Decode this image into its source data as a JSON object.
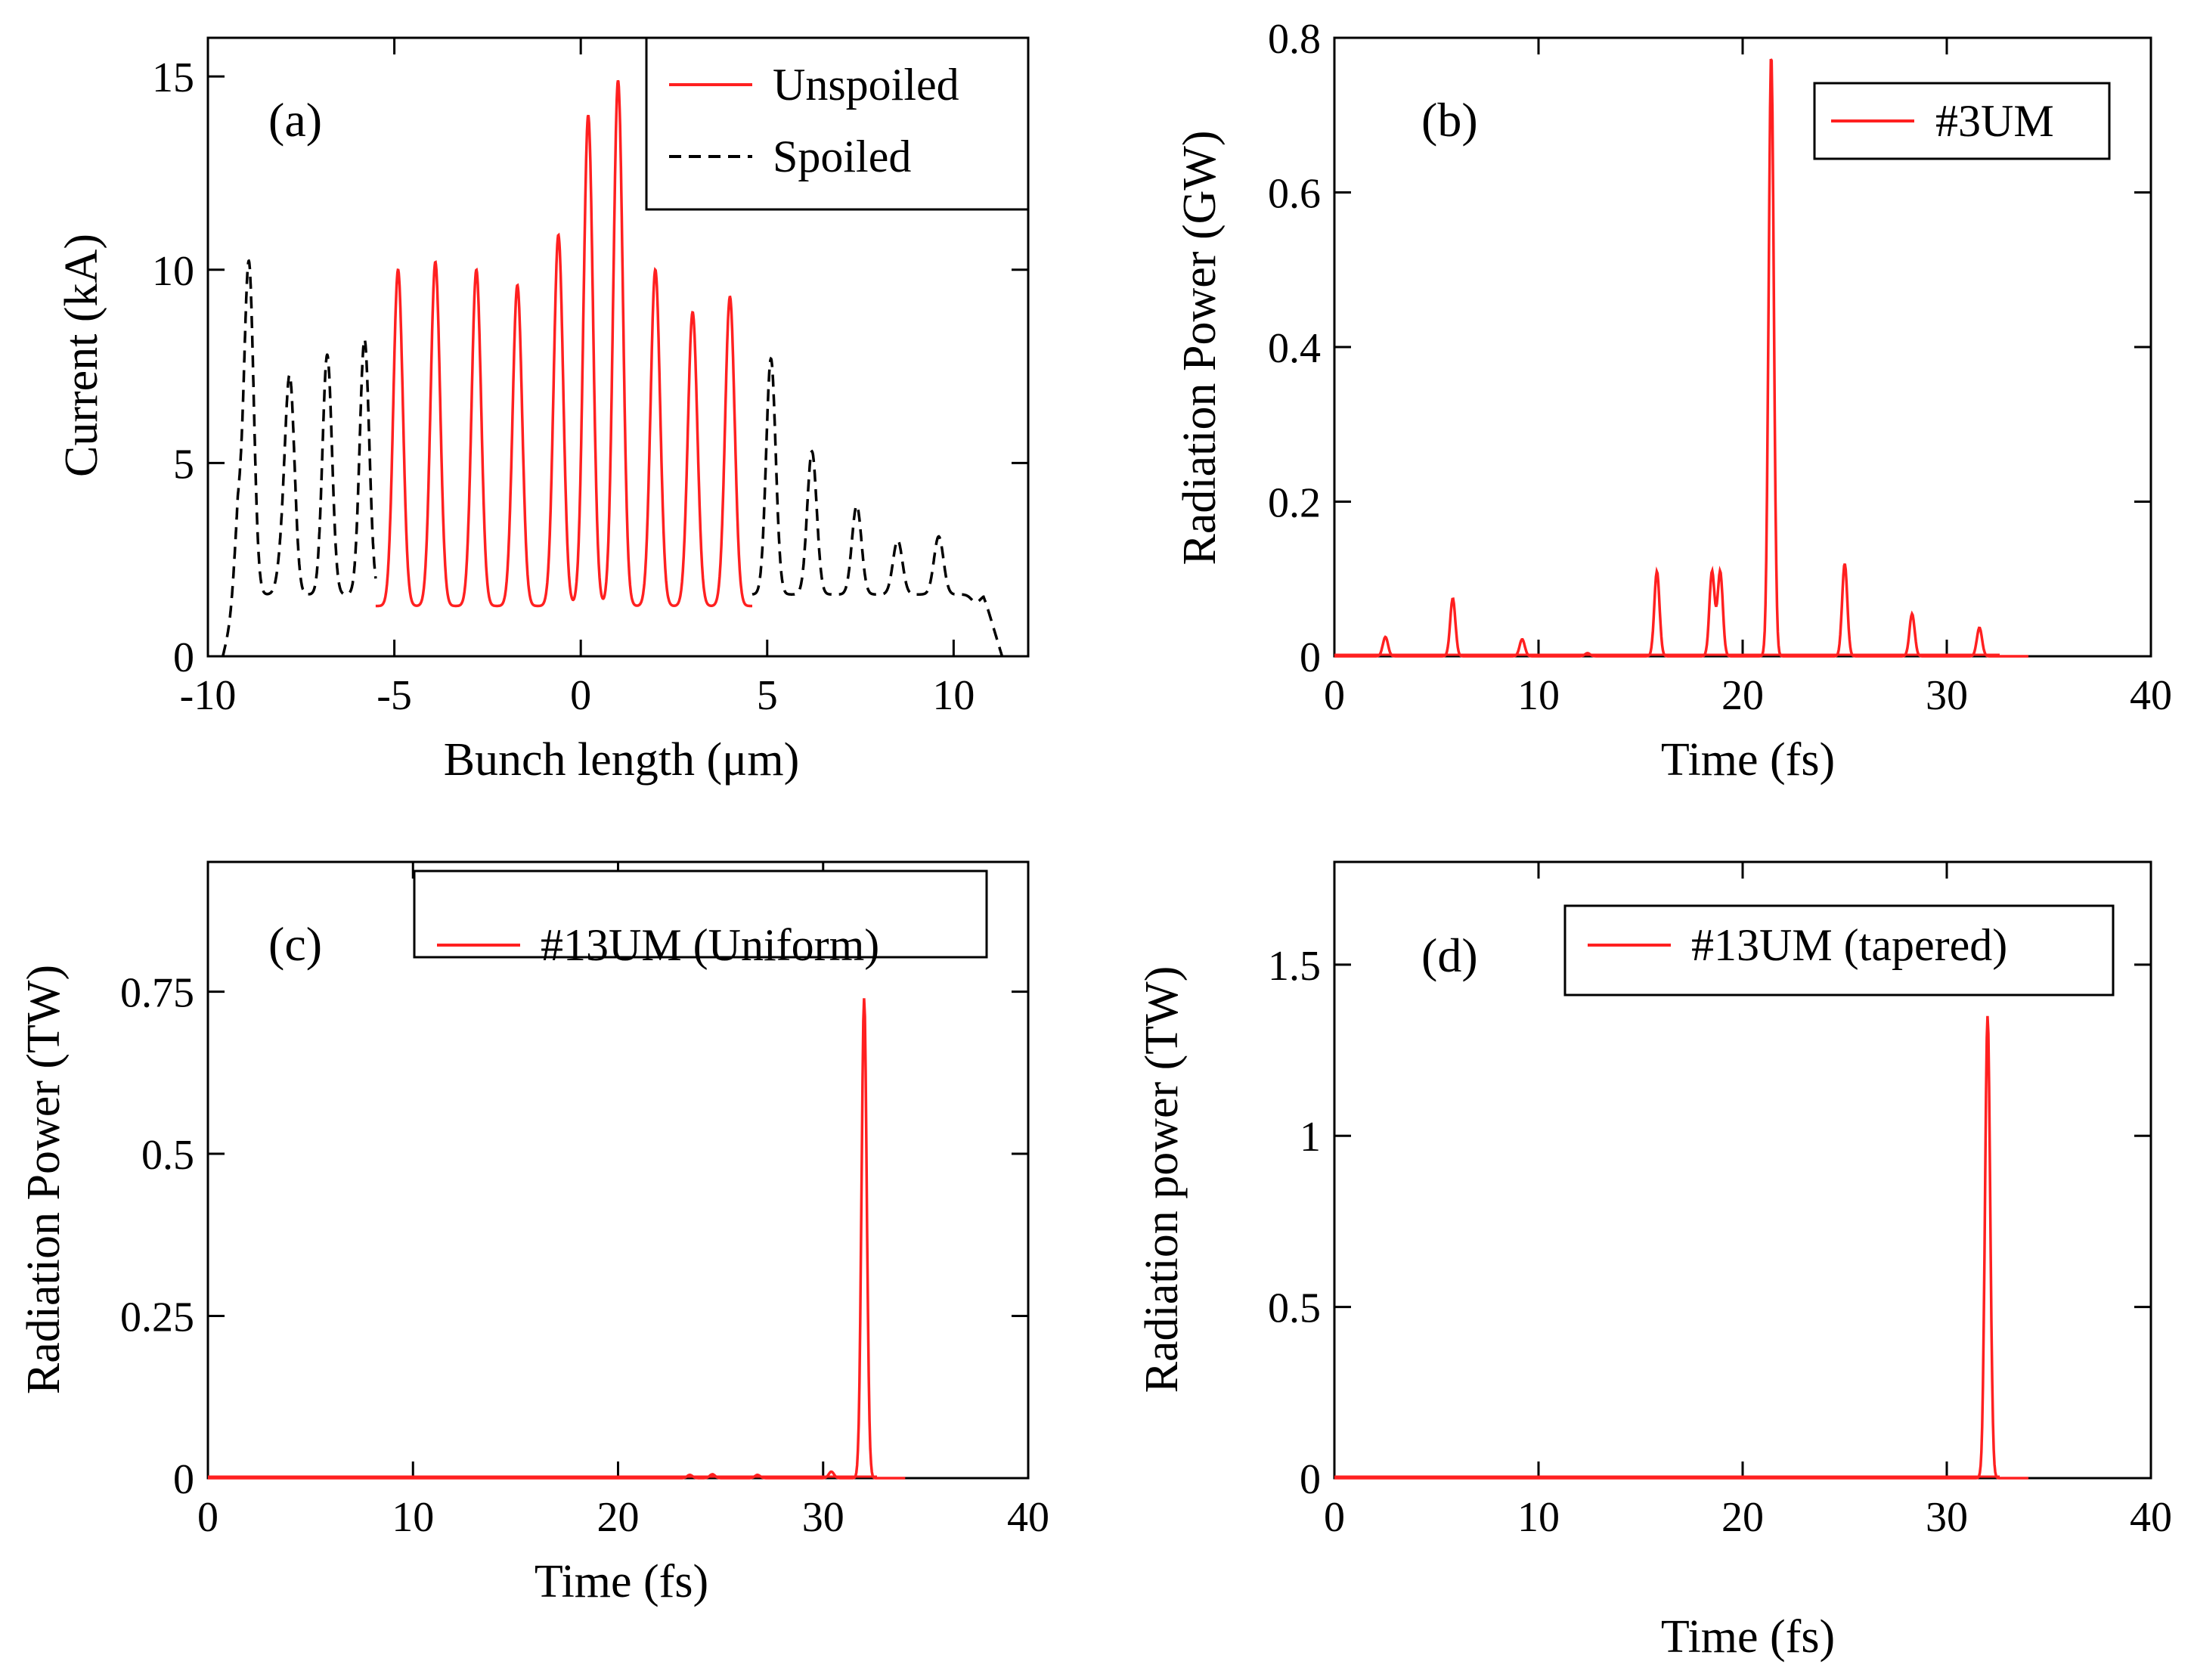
{
  "colors": {
    "unspoiled": "#ff2020",
    "spoiled": "#000000",
    "axes": "#000000"
  },
  "chart_data": [
    {
      "id": "a",
      "type": "line",
      "panel_label": "(a)",
      "xlabel": "Bunch length (μm)",
      "ylabel": "Current (kA)",
      "xlim": [
        -10,
        12
      ],
      "ylim": [
        0,
        16
      ],
      "xticks": [
        -10,
        -5,
        0,
        5,
        10
      ],
      "xtick_labels": [
        "-10",
        "-5",
        "0",
        "5",
        "10"
      ],
      "yticks": [
        0,
        5,
        10,
        15
      ],
      "ytick_labels": [
        "0",
        "5",
        "10",
        "15"
      ],
      "legend": {
        "location": "top-right",
        "entries": [
          "Unspoiled",
          "Spoiled"
        ]
      },
      "series": [
        {
          "name": "Unspoiled",
          "style": "solid",
          "color": "#ff2020",
          "baseline": 1.3,
          "range": [
            -5.5,
            4.6
          ],
          "peaks": [
            [
              -4.9,
              10.0
            ],
            [
              -3.9,
              10.2
            ],
            [
              -2.8,
              10.0
            ],
            [
              -1.7,
              9.6
            ],
            [
              -0.6,
              10.9
            ],
            [
              0.2,
              14.0
            ],
            [
              1.0,
              14.9
            ],
            [
              2.0,
              10.0
            ],
            [
              3.0,
              8.9
            ],
            [
              4.0,
              9.3
            ]
          ]
        },
        {
          "name": "Spoiled",
          "style": "dashed",
          "color": "#000000",
          "baseline": 1.6,
          "ranges": [
            [
              -9.6,
              -5.5
            ],
            [
              4.6,
              11.3
            ]
          ],
          "peaks": [
            [
              -9.2,
              3.6
            ],
            [
              -8.9,
              10.1
            ],
            [
              -8.0,
              2.5
            ],
            [
              -7.8,
              7.0
            ],
            [
              -6.8,
              7.8
            ],
            [
              -5.8,
              8.2
            ],
            [
              5.1,
              7.7
            ],
            [
              6.2,
              5.3
            ],
            [
              7.4,
              3.9
            ],
            [
              8.5,
              3.0
            ],
            [
              9.6,
              3.1
            ],
            [
              10.6,
              1.4
            ]
          ]
        }
      ]
    },
    {
      "id": "b",
      "type": "line",
      "panel_label": "(b)",
      "xlabel": "Time (fs)",
      "ylabel": "Radiation Power (GW)",
      "xlim": [
        0,
        40
      ],
      "ylim": [
        0,
        0.8
      ],
      "xticks": [
        0,
        10,
        20,
        30,
        40
      ],
      "xtick_labels": [
        "0",
        "10",
        "20",
        "30",
        "40"
      ],
      "yticks": [
        0,
        0.2,
        0.4,
        0.6,
        0.8
      ],
      "ytick_labels": [
        "0",
        "0.2",
        "0.4",
        "0.6",
        "0.8"
      ],
      "legend": {
        "location": "top-right",
        "entries": [
          "#3UM"
        ]
      },
      "series": [
        {
          "name": "#3UM",
          "color": "#ff2020",
          "peaks": [
            [
              2.5,
              0.025
            ],
            [
              5.8,
              0.075
            ],
            [
              9.2,
              0.022
            ],
            [
              12.4,
              0.004
            ],
            [
              15.8,
              0.11
            ],
            [
              18.5,
              0.11
            ],
            [
              18.9,
              0.11
            ],
            [
              21.4,
              0.78
            ],
            [
              25.0,
              0.12
            ],
            [
              28.3,
              0.055
            ],
            [
              31.6,
              0.037
            ]
          ]
        }
      ]
    },
    {
      "id": "c",
      "type": "line",
      "panel_label": "(c)",
      "xlabel": "Time (fs)",
      "ylabel": "Radiation Power (TW)",
      "xlim": [
        0,
        40
      ],
      "ylim": [
        0,
        0.95
      ],
      "xticks": [
        0,
        10,
        20,
        30,
        40
      ],
      "xtick_labels": [
        "0",
        "10",
        "20",
        "30",
        "40"
      ],
      "yticks": [
        0,
        0.25,
        0.5,
        0.75
      ],
      "ytick_labels": [
        "0",
        "0.25",
        "0.5",
        "0.75"
      ],
      "legend": {
        "location": "top-right",
        "entries": [
          "#13UM (Uniform)"
        ]
      },
      "series": [
        {
          "name": "#13UM (Uniform)",
          "color": "#ff2020",
          "peaks": [
            [
              23.5,
              0.005
            ],
            [
              24.6,
              0.006
            ],
            [
              26.8,
              0.005
            ],
            [
              30.4,
              0.01
            ],
            [
              32.0,
              0.74
            ]
          ]
        }
      ]
    },
    {
      "id": "d",
      "type": "line",
      "panel_label": "(d)",
      "xlabel": "Time (fs)",
      "ylabel": "Radiation power (TW)",
      "xlim": [
        0,
        40
      ],
      "ylim": [
        0,
        1.8
      ],
      "xticks": [
        0,
        10,
        20,
        30,
        40
      ],
      "xtick_labels": [
        "0",
        "10",
        "20",
        "30",
        "40"
      ],
      "yticks": [
        0,
        0.5,
        1,
        1.5
      ],
      "ytick_labels": [
        "0",
        "0.5",
        "1",
        "1.5"
      ],
      "legend": {
        "location": "top-right",
        "entries": [
          "#13UM (tapered)"
        ]
      },
      "series": [
        {
          "name": "#13UM (tapered)",
          "color": "#ff2020",
          "peaks": [
            [
              32.0,
              1.35
            ]
          ]
        }
      ]
    }
  ]
}
